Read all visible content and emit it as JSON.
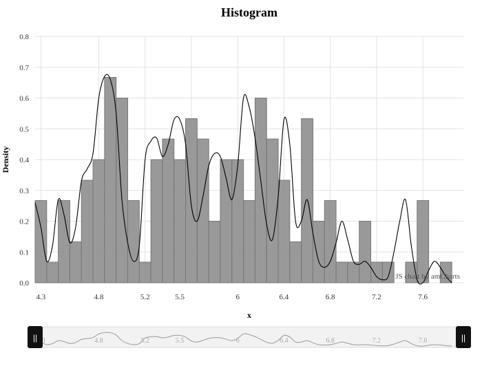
{
  "chart_data": {
    "type": "bar",
    "title": "Histogram",
    "xlabel": "x",
    "ylabel": "Density",
    "xlim": [
      4.25,
      7.95
    ],
    "ylim": [
      0,
      0.8
    ],
    "y_ticks": [
      0,
      0.1,
      0.2,
      0.3,
      0.4,
      0.5,
      0.6,
      0.7,
      0.8
    ],
    "y_tick_labels": [
      "0.0",
      "0.1",
      "0.2",
      "0.3",
      "0.4",
      "0.5",
      "0.6",
      "0.7",
      "0.8"
    ],
    "x_ticks": [
      4.3,
      4.8,
      5.2,
      5.5,
      6.0,
      6.4,
      6.8,
      7.2,
      7.6
    ],
    "x_tick_labels": [
      "4.3",
      "4.8",
      "5.2",
      "5.5",
      "6",
      "6.4",
      "6.8",
      "7.2",
      "7.6"
    ],
    "x_grid": [
      4.3,
      4.8,
      5.2,
      5.6,
      6.0,
      6.4,
      6.8,
      7.2,
      7.6
    ],
    "grid": true,
    "bin_width": 0.1,
    "bins": [
      {
        "x0": 4.25,
        "density": 0.267
      },
      {
        "x0": 4.35,
        "density": 0.067
      },
      {
        "x0": 4.45,
        "density": 0.267
      },
      {
        "x0": 4.55,
        "density": 0.133
      },
      {
        "x0": 4.65,
        "density": 0.333
      },
      {
        "x0": 4.75,
        "density": 0.4
      },
      {
        "x0": 4.85,
        "density": 0.667
      },
      {
        "x0": 4.95,
        "density": 0.6
      },
      {
        "x0": 5.05,
        "density": 0.267
      },
      {
        "x0": 5.15,
        "density": 0.067
      },
      {
        "x0": 5.25,
        "density": 0.4
      },
      {
        "x0": 5.35,
        "density": 0.467
      },
      {
        "x0": 5.45,
        "density": 0.4
      },
      {
        "x0": 5.55,
        "density": 0.533
      },
      {
        "x0": 5.65,
        "density": 0.467
      },
      {
        "x0": 5.75,
        "density": 0.2
      },
      {
        "x0": 5.85,
        "density": 0.4
      },
      {
        "x0": 5.95,
        "density": 0.4
      },
      {
        "x0": 6.05,
        "density": 0.267
      },
      {
        "x0": 6.15,
        "density": 0.6
      },
      {
        "x0": 6.25,
        "density": 0.467
      },
      {
        "x0": 6.35,
        "density": 0.333
      },
      {
        "x0": 6.45,
        "density": 0.133
      },
      {
        "x0": 6.55,
        "density": 0.533
      },
      {
        "x0": 6.65,
        "density": 0.2
      },
      {
        "x0": 6.75,
        "density": 0.267
      },
      {
        "x0": 6.85,
        "density": 0.067
      },
      {
        "x0": 6.95,
        "density": 0.067
      },
      {
        "x0": 7.05,
        "density": 0.2
      },
      {
        "x0": 7.15,
        "density": 0.067
      },
      {
        "x0": 7.25,
        "density": 0.067
      },
      {
        "x0": 7.35,
        "density": 0.0
      },
      {
        "x0": 7.45,
        "density": 0.067
      },
      {
        "x0": 7.55,
        "density": 0.267
      },
      {
        "x0": 7.65,
        "density": 0.0
      },
      {
        "x0": 7.75,
        "density": 0.067
      }
    ],
    "density_curve": {
      "x": [
        4.25,
        4.3,
        4.35,
        4.4,
        4.45,
        4.5,
        4.55,
        4.6,
        4.65,
        4.7,
        4.75,
        4.8,
        4.85,
        4.9,
        4.95,
        5.0,
        5.05,
        5.1,
        5.15,
        5.2,
        5.25,
        5.3,
        5.35,
        5.4,
        5.45,
        5.5,
        5.55,
        5.6,
        5.65,
        5.7,
        5.75,
        5.8,
        5.85,
        5.9,
        5.95,
        6.0,
        6.05,
        6.1,
        6.15,
        6.2,
        6.25,
        6.3,
        6.35,
        6.4,
        6.45,
        6.5,
        6.55,
        6.6,
        6.65,
        6.7,
        6.75,
        6.8,
        6.85,
        6.9,
        6.95,
        7.0,
        7.05,
        7.1,
        7.15,
        7.2,
        7.25,
        7.3,
        7.35,
        7.4,
        7.45,
        7.5,
        7.55,
        7.6,
        7.65,
        7.7,
        7.75,
        7.8,
        7.85
      ],
      "y": [
        0.26,
        0.18,
        0.07,
        0.12,
        0.27,
        0.22,
        0.13,
        0.18,
        0.33,
        0.37,
        0.42,
        0.6,
        0.67,
        0.66,
        0.55,
        0.27,
        0.13,
        0.07,
        0.12,
        0.4,
        0.46,
        0.47,
        0.41,
        0.45,
        0.53,
        0.53,
        0.45,
        0.25,
        0.2,
        0.28,
        0.38,
        0.42,
        0.41,
        0.34,
        0.27,
        0.38,
        0.6,
        0.57,
        0.47,
        0.33,
        0.19,
        0.14,
        0.28,
        0.53,
        0.45,
        0.2,
        0.2,
        0.27,
        0.16,
        0.07,
        0.05,
        0.07,
        0.13,
        0.2,
        0.14,
        0.07,
        0.06,
        0.07,
        0.05,
        0.02,
        0.01,
        0.02,
        0.1,
        0.2,
        0.27,
        0.12,
        0.01,
        0.0,
        0.04,
        0.07,
        0.05,
        0.02,
        0.0
      ]
    },
    "credit": "JS chart by amCharts"
  },
  "scrollbar": {
    "left_grip": "||",
    "right_grip": "||",
    "tick_labels": [
      "4.3",
      "4.8",
      "5.2",
      "5.5",
      "6",
      "6.4",
      "6.8",
      "7.2",
      "7.6"
    ]
  }
}
